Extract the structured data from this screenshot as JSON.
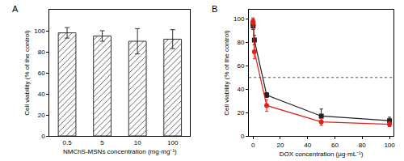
{
  "chart_data": [
    {
      "type": "bar",
      "title": "A",
      "categories": [
        "0.5",
        "5",
        "10",
        "100"
      ],
      "values": [
        98,
        95,
        90,
        92
      ],
      "errors": [
        5,
        5,
        12,
        9
      ],
      "color": "#333333",
      "marker": "hatch",
      "x_label": "NMChS-MSNs concentration (mg·mg⁻¹)",
      "y_label": "Cell viability (% of the control)",
      "ylim": [
        0,
        120
      ],
      "yticks": [
        0,
        20,
        40,
        60,
        80,
        100
      ]
    },
    {
      "type": "line",
      "title": "B",
      "x": [
        0,
        0.1,
        1,
        10,
        50,
        100
      ],
      "series": [
        {
          "color": "#222222",
          "marker": "square",
          "values": [
            96,
            94,
            82,
            35,
            17,
            13
          ],
          "errors": [
            3,
            3,
            4,
            2,
            6,
            3
          ]
        },
        {
          "color": "#e0201b",
          "marker": "circle",
          "values": [
            98,
            97,
            72,
            26,
            12,
            10
          ],
          "errors": [
            3,
            3,
            6,
            5,
            3,
            2
          ]
        }
      ],
      "threshold": 50,
      "x_label": "DOX concentration (µg·mL⁻¹)",
      "y_label": "Cell viability (% of the control)",
      "xlim": [
        -3,
        103
      ],
      "xticks": [
        0,
        20,
        40,
        60,
        80,
        100
      ],
      "ylim": [
        0,
        108
      ],
      "yticks": [
        0,
        20,
        40,
        60,
        80,
        100
      ]
    }
  ]
}
